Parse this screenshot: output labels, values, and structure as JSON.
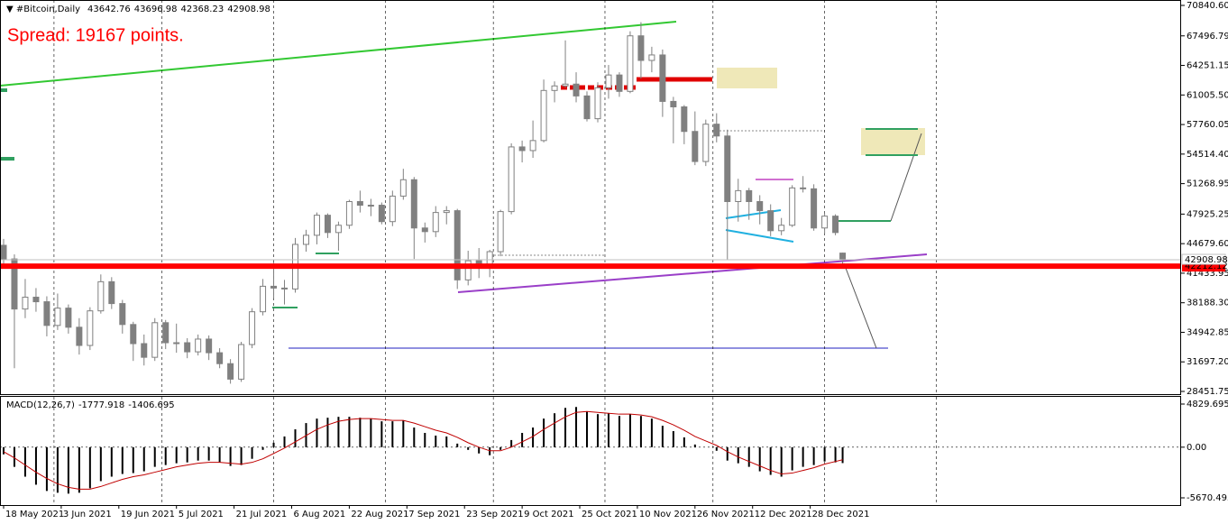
{
  "chart_data": [
    {
      "type": "candlestick",
      "title": "#Bitcoin,Daily",
      "annotation": "Spread: 19167 points.",
      "color": "#808080",
      "x": [
        "2021-05-18",
        "2021-05-21",
        "2021-05-24",
        "2021-05-27",
        "2021-05-30",
        "2021-06-02",
        "2021-06-05",
        "2021-06-08",
        "2021-06-11",
        "2021-06-14",
        "2021-06-17",
        "2021-06-20",
        "2021-06-23",
        "2021-06-26",
        "2021-06-29",
        "2021-07-02",
        "2021-07-05",
        "2021-07-08",
        "2021-07-11",
        "2021-07-14",
        "2021-07-17",
        "2021-07-20",
        "2021-07-23",
        "2021-07-26",
        "2021-07-29",
        "2021-08-01",
        "2021-08-04",
        "2021-08-07",
        "2021-08-10",
        "2021-08-13",
        "2021-08-16",
        "2021-08-19",
        "2021-08-22",
        "2021-08-25",
        "2021-08-28",
        "2021-08-31",
        "2021-09-03",
        "2021-09-06",
        "2021-09-09",
        "2021-09-12",
        "2021-09-15",
        "2021-09-18",
        "2021-09-21",
        "2021-09-24",
        "2021-09-27",
        "2021-09-30",
        "2021-10-03",
        "2021-10-06",
        "2021-10-09",
        "2021-10-12",
        "2021-10-15",
        "2021-10-18",
        "2021-10-21",
        "2021-10-24",
        "2021-10-27",
        "2021-10-30",
        "2021-11-02",
        "2021-11-05",
        "2021-11-08",
        "2021-11-11",
        "2021-11-14",
        "2021-11-17",
        "2021-11-20",
        "2021-11-23",
        "2021-11-26",
        "2021-11-29",
        "2021-12-02",
        "2021-12-05",
        "2021-12-08",
        "2021-12-11",
        "2021-12-14",
        "2021-12-17",
        "2021-12-20",
        "2021-12-23",
        "2021-12-26",
        "2021-12-29",
        "2022-01-01",
        "2022-01-04",
        "2022-01-06"
      ],
      "open": [
        44500,
        43000,
        37500,
        38800,
        38300,
        35700,
        37600,
        35500,
        33500,
        37300,
        40500,
        38100,
        35800,
        33700,
        32200,
        36000,
        33800,
        33800,
        32800,
        34200,
        32700,
        31500,
        29800,
        33600,
        37200,
        40000,
        39800,
        39700,
        44600,
        45600,
        47800,
        45900,
        46700,
        49300,
        48900,
        48900,
        47100,
        49900,
        51700,
        46400,
        46000,
        48100,
        48300,
        40700,
        42800,
        42200,
        43800,
        48200,
        55300,
        54900,
        56000,
        61500,
        62000,
        62200,
        60900,
        58400,
        61800,
        63200,
        61400,
        67500,
        64800,
        65400,
        60300,
        59700,
        57000,
        53700,
        57800,
        56500,
        49300,
        50500,
        49300,
        48300,
        46100,
        46700,
        50800,
        50700,
        46400,
        47700,
        43642.76
      ],
      "high": [
        45200,
        43500,
        40800,
        39800,
        38900,
        39200,
        38000,
        36500,
        37700,
        41300,
        41000,
        38500,
        36100,
        34700,
        36500,
        36300,
        35900,
        34300,
        34700,
        34600,
        33200,
        32000,
        33900,
        37600,
        40800,
        42600,
        40700,
        45300,
        46200,
        48100,
        48000,
        47100,
        49500,
        50500,
        49600,
        49200,
        50500,
        52900,
        52000,
        47000,
        48800,
        48800,
        48500,
        43900,
        44200,
        44000,
        48400,
        55700,
        56000,
        58200,
        62700,
        62500,
        67000,
        63500,
        61400,
        62400,
        64300,
        63500,
        68000,
        69000,
        66300,
        66000,
        60800,
        59900,
        59200,
        58300,
        59000,
        57200,
        51800,
        50800,
        50000,
        49000,
        47500,
        51100,
        52100,
        51200,
        48000,
        47900,
        43696.98
      ],
      "low": [
        42000,
        31000,
        36500,
        37200,
        34500,
        35200,
        34800,
        32500,
        33000,
        37000,
        37500,
        34800,
        31800,
        31300,
        31800,
        33100,
        32700,
        32100,
        32400,
        31900,
        31000,
        29300,
        29500,
        33200,
        36800,
        38700,
        38000,
        39300,
        43800,
        44600,
        45300,
        43900,
        46300,
        48100,
        47700,
        46800,
        46600,
        49500,
        43000,
        44800,
        45400,
        46800,
        39700,
        40100,
        40900,
        41000,
        43300,
        47900,
        53600,
        54100,
        55800,
        60200,
        61800,
        60200,
        58100,
        58000,
        60600,
        60800,
        61200,
        62800,
        63500,
        58600,
        55700,
        55600,
        53300,
        53200,
        55800,
        42900,
        47100,
        47300,
        46800,
        45500,
        45600,
        46500,
        50300,
        46100,
        45800,
        45600,
        42368.23
      ],
      "close": [
        43000,
        37500,
        38800,
        38300,
        35700,
        37600,
        35500,
        33500,
        37300,
        40500,
        38100,
        35800,
        33700,
        32200,
        36000,
        33800,
        33800,
        32800,
        34200,
        32700,
        31500,
        29800,
        33600,
        37200,
        40000,
        39800,
        39700,
        44600,
        45600,
        47800,
        45900,
        46700,
        49300,
        48900,
        48900,
        47100,
        49900,
        51700,
        46400,
        46000,
        48100,
        48300,
        40700,
        42800,
        42200,
        43800,
        48200,
        55300,
        54900,
        56000,
        61500,
        62000,
        62200,
        60900,
        58400,
        61800,
        63200,
        61400,
        67500,
        64800,
        65400,
        60300,
        59700,
        57000,
        53700,
        57800,
        56500,
        49300,
        50500,
        49300,
        48300,
        46100,
        46700,
        50800,
        50700,
        46400,
        47700,
        45900,
        42908.98
      ],
      "xlim": [
        "2021-05-17",
        "2022-04-10"
      ],
      "xticks": [
        {
          "value": "2021-05-18",
          "label": "18 May 2021"
        },
        {
          "value": "2021-06-03",
          "label": "3 Jun 2021"
        },
        {
          "value": "2021-06-19",
          "label": "19 Jun 2021"
        },
        {
          "value": "2021-07-05",
          "label": "5 Jul 2021"
        },
        {
          "value": "2021-07-21",
          "label": "21 Jul 2021"
        },
        {
          "value": "2021-08-06",
          "label": "6 Aug 2021"
        },
        {
          "value": "2021-08-22",
          "label": "22 Aug 2021"
        },
        {
          "value": "2021-09-07",
          "label": "7 Sep 2021"
        },
        {
          "value": "2021-09-23",
          "label": "23 Sep 2021"
        },
        {
          "value": "2021-10-09",
          "label": "9 Oct 2021"
        },
        {
          "value": "2021-10-25",
          "label": "25 Oct 2021"
        },
        {
          "value": "2021-11-10",
          "label": "10 Nov 2021"
        },
        {
          "value": "2021-11-26",
          "label": "26 Nov 2021"
        },
        {
          "value": "2021-12-12",
          "label": "12 Dec 2021"
        },
        {
          "value": "2021-12-28",
          "label": "28 Dec 2021"
        }
      ],
      "xgrid": [
        "2021-06-01",
        "2021-07-01",
        "2021-08-01",
        "2021-09-01",
        "2021-10-01",
        "2021-11-01",
        "2021-12-01",
        "2022-01-01",
        "2022-02-01"
      ],
      "ylim": [
        28155,
        71435
      ],
      "yticks": [
        {
          "value": 70840.6,
          "label": "70840.60"
        },
        67496.79,
        64251.15,
        {
          "value": 61005.5,
          "label": "61005.50"
        },
        57760.05,
        {
          "value": 54514.4,
          "label": "54514.40"
        },
        51268.95,
        47925.25,
        {
          "value": 44679.6,
          "label": "44679.60"
        },
        41433.95,
        {
          "value": 38188.3,
          "label": "38188.30"
        },
        34942.85,
        {
          "value": 31697.2,
          "label": "31697.20"
        },
        28451.75
      ],
      "levels": [
        {
          "value": 42212.12,
          "color": "#ff0000"
        }
      ]
    },
    {
      "type": "macd",
      "label": "MACD(12,26,7)",
      "color": "#000000",
      "signal_color": "#c00000",
      "values": [
        -800,
        -2200,
        -3300,
        -4200,
        -4900,
        -5100,
        -5200,
        -5100,
        -4600,
        -3800,
        -3300,
        -3000,
        -2900,
        -2700,
        -2200,
        -2000,
        -1800,
        -1700,
        -1500,
        -1500,
        -1700,
        -2100,
        -2000,
        -1300,
        -300,
        500,
        1200,
        2000,
        2700,
        3200,
        3300,
        3400,
        3400,
        3300,
        3200,
        2900,
        2900,
        3000,
        2200,
        1600,
        1300,
        1200,
        400,
        -300,
        -700,
        -900,
        -300,
        800,
        1600,
        2200,
        3200,
        3800,
        4400,
        4500,
        4000,
        3700,
        3800,
        3500,
        3700,
        3500,
        3200,
        2400,
        1800,
        1100,
        300,
        0,
        -400,
        -1500,
        -1800,
        -2200,
        -2700,
        -3100,
        -3300,
        -2600,
        -2200,
        -2000,
        -1600,
        -1700,
        -1777.918
      ],
      "signal": [
        -500,
        -1200,
        -2000,
        -2800,
        -3500,
        -4100,
        -4500,
        -4700,
        -4700,
        -4400,
        -4000,
        -3600,
        -3300,
        -3100,
        -2800,
        -2500,
        -2200,
        -2000,
        -1800,
        -1700,
        -1700,
        -1800,
        -1900,
        -1700,
        -1300,
        -700,
        -100,
        600,
        1300,
        2000,
        2500,
        2900,
        3100,
        3200,
        3200,
        3100,
        3000,
        3000,
        2700,
        2300,
        1900,
        1600,
        1100,
        500,
        0,
        -400,
        -400,
        0,
        600,
        1200,
        2000,
        2700,
        3400,
        3900,
        4000,
        3900,
        3800,
        3700,
        3700,
        3600,
        3400,
        3000,
        2500,
        1900,
        1200,
        700,
        200,
        -500,
        -1100,
        -1600,
        -2100,
        -2600,
        -3000,
        -2900,
        -2600,
        -2300,
        -1900,
        -1600,
        -1406.695
      ],
      "ylim": [
        -6478,
        5637
      ],
      "yticks": [
        4829.695,
        {
          "value": 0,
          "label": "0.00"
        },
        -5670.495
      ]
    }
  ]
}
